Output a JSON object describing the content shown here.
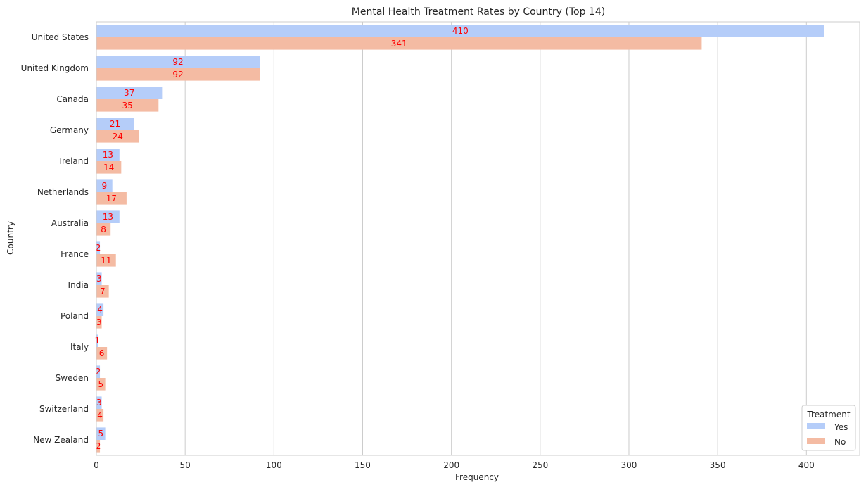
{
  "chart_data": {
    "type": "bar",
    "orientation": "horizontal",
    "title": "Mental Health Treatment Rates by Country (Top 14)",
    "xlabel": "Frequency",
    "ylabel": "Country",
    "xlim": [
      0,
      430
    ],
    "xticks": [
      0,
      50,
      100,
      150,
      200,
      250,
      300,
      350,
      400
    ],
    "grid": "vertical",
    "categories": [
      "United States",
      "United Kingdom",
      "Canada",
      "Germany",
      "Ireland",
      "Netherlands",
      "Australia",
      "France",
      "India",
      "Poland",
      "Italy",
      "Sweden",
      "Switzerland",
      "New Zealand"
    ],
    "series": [
      {
        "name": "Yes",
        "color": "#b5cdf9",
        "values": [
          410,
          92,
          37,
          21,
          13,
          9,
          13,
          2,
          3,
          4,
          1,
          2,
          3,
          5
        ]
      },
      {
        "name": "No",
        "color": "#f4bba3",
        "values": [
          341,
          92,
          35,
          24,
          14,
          17,
          8,
          11,
          7,
          3,
          6,
          5,
          4,
          2
        ]
      }
    ],
    "data_label_color": "#ff0000",
    "legend": {
      "title": "Treatment",
      "position": "lower-right"
    }
  }
}
